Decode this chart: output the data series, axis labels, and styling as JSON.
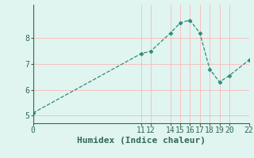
{
  "xlabel": "Humidex (Indice chaleur)",
  "ylabel": "",
  "x": [
    0,
    11,
    12,
    14,
    15,
    16,
    17,
    18,
    19,
    20,
    22
  ],
  "y": [
    5.1,
    7.4,
    7.5,
    8.2,
    8.6,
    8.7,
    8.2,
    6.8,
    6.3,
    6.55,
    7.15
  ],
  "line_color": "#2e8b7a",
  "marker": "D",
  "marker_size": 2.5,
  "bg_color": "#e0f5f0",
  "grid_color": "#f5c0c0",
  "axis_color": "#336655",
  "xlim": [
    0,
    22
  ],
  "ylim": [
    4.7,
    9.3
  ],
  "xticks": [
    0,
    11,
    12,
    14,
    15,
    16,
    17,
    18,
    19,
    20,
    22
  ],
  "yticks": [
    5,
    6,
    7,
    8
  ],
  "tick_fontsize": 7,
  "xlabel_fontsize": 8,
  "linestyle": "--",
  "linewidth": 0.9
}
